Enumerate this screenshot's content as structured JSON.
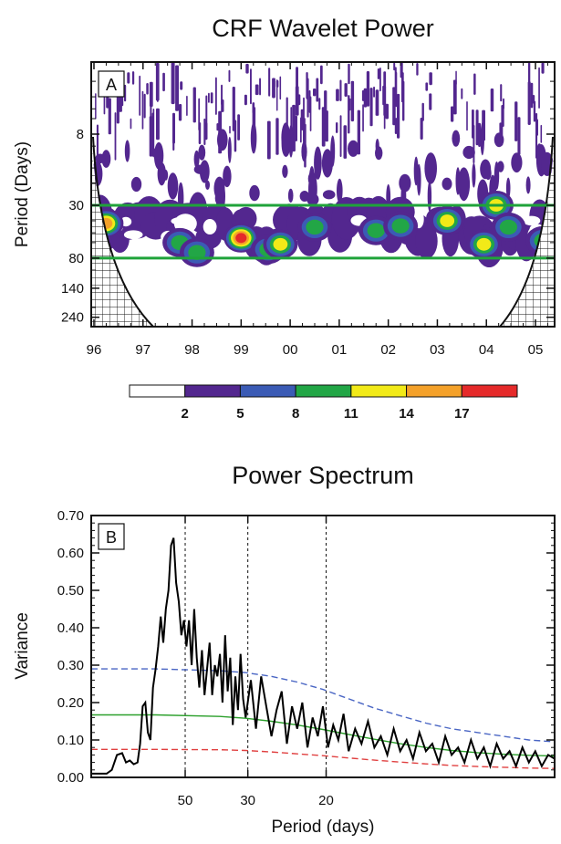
{
  "chart_data": [
    {
      "type": "heatmap",
      "title": "CRF Wavelet Power",
      "panel_label": "A",
      "ylabel": "Period (Days)",
      "x_tick_labels": [
        "96",
        "97",
        "98",
        "99",
        "00",
        "01",
        "02",
        "03",
        "04",
        "05"
      ],
      "y_tick_labels": [
        "8",
        "30",
        "80",
        "140",
        "240"
      ],
      "y_scale": "log",
      "reference_lines_days": [
        30,
        80
      ],
      "reference_line_color": "#1fa33a",
      "colorbar": {
        "labels": [
          "2",
          "5",
          "8",
          "11",
          "14",
          "17"
        ],
        "colors": [
          "#ffffff",
          "#53278f",
          "#3b5bb5",
          "#22a646",
          "#f2ea18",
          "#f4a12a",
          "#e52a2a"
        ]
      },
      "power_blobs": [
        {
          "year": 96.05,
          "period": 50,
          "level": 4
        },
        {
          "year": 96.25,
          "period": 42,
          "level": 5
        },
        {
          "year": 97.75,
          "period": 60,
          "level": 3
        },
        {
          "year": 98.1,
          "period": 72,
          "level": 3
        },
        {
          "year": 99.0,
          "period": 55,
          "level": 6
        },
        {
          "year": 99.55,
          "period": 68,
          "level": 3
        },
        {
          "year": 99.8,
          "period": 62,
          "level": 4
        },
        {
          "year": 100.5,
          "period": 45,
          "level": 3
        },
        {
          "year": 101.75,
          "period": 48,
          "level": 3
        },
        {
          "year": 102.25,
          "period": 44,
          "level": 3
        },
        {
          "year": 103.2,
          "period": 40,
          "level": 4
        },
        {
          "year": 103.95,
          "period": 62,
          "level": 4
        },
        {
          "year": 104.2,
          "period": 30,
          "level": 4
        },
        {
          "year": 104.45,
          "period": 45,
          "level": 3
        },
        {
          "year": 105.15,
          "period": 58,
          "level": 3
        },
        {
          "year": 105.45,
          "period": 50,
          "level": 3
        }
      ]
    },
    {
      "type": "line",
      "title": "Power Spectrum",
      "panel_label": "B",
      "xlabel": "Period (days)",
      "ylabel": "Variance",
      "ylim": [
        0,
        0.7
      ],
      "y_tick_labels": [
        "0.00",
        "0.10",
        "0.20",
        "0.30",
        "0.40",
        "0.50",
        "0.60",
        "0.70"
      ],
      "x_tick_labels": [
        "50",
        "30",
        "20"
      ],
      "x_tick_periods": [
        50,
        30,
        20
      ],
      "x_axis": "frequency (cycles per 3650 days)",
      "xlim": [
        0,
        360
      ],
      "series": [
        {
          "color": "#000000",
          "style": "solid",
          "x": [
            0,
            8,
            12,
            16,
            20,
            24,
            27,
            30,
            33,
            36,
            38,
            40,
            42,
            44,
            46,
            48,
            50,
            52,
            54,
            56,
            58,
            60,
            62,
            64,
            66,
            68,
            70,
            72,
            74,
            76,
            78,
            80,
            82,
            84,
            86,
            88,
            90,
            92,
            94,
            96,
            98,
            100,
            102,
            104,
            106,
            108,
            110,
            112,
            114,
            116,
            118,
            120,
            124,
            128,
            132,
            136,
            140,
            144,
            148,
            152,
            156,
            160,
            164,
            168,
            172,
            176,
            180,
            184,
            188,
            192,
            196,
            200,
            205,
            210,
            215,
            220,
            225,
            230,
            235,
            240,
            245,
            250,
            255,
            260,
            265,
            270,
            275,
            280,
            285,
            290,
            295,
            300,
            305,
            310,
            315,
            320,
            325,
            330,
            335,
            340,
            345,
            350,
            355,
            360
          ],
          "values": [
            0.01,
            0.01,
            0.01,
            0.02,
            0.06,
            0.065,
            0.04,
            0.045,
            0.035,
            0.04,
            0.09,
            0.19,
            0.2,
            0.12,
            0.1,
            0.24,
            0.29,
            0.35,
            0.43,
            0.36,
            0.45,
            0.5,
            0.62,
            0.64,
            0.52,
            0.47,
            0.38,
            0.42,
            0.35,
            0.42,
            0.3,
            0.45,
            0.32,
            0.24,
            0.34,
            0.22,
            0.29,
            0.36,
            0.22,
            0.3,
            0.27,
            0.33,
            0.2,
            0.38,
            0.23,
            0.32,
            0.14,
            0.27,
            0.18,
            0.33,
            0.21,
            0.16,
            0.26,
            0.13,
            0.27,
            0.19,
            0.11,
            0.18,
            0.23,
            0.09,
            0.19,
            0.13,
            0.2,
            0.08,
            0.16,
            0.11,
            0.19,
            0.08,
            0.14,
            0.1,
            0.17,
            0.07,
            0.13,
            0.09,
            0.15,
            0.08,
            0.11,
            0.06,
            0.13,
            0.07,
            0.1,
            0.05,
            0.12,
            0.07,
            0.09,
            0.04,
            0.11,
            0.06,
            0.08,
            0.04,
            0.1,
            0.05,
            0.08,
            0.03,
            0.09,
            0.05,
            0.07,
            0.03,
            0.08,
            0.04,
            0.07,
            0.03,
            0.06,
            0.05
          ]
        },
        {
          "color": "#4a66c4",
          "style": "dashed",
          "x": [
            0,
            50,
            100,
            120,
            140,
            160,
            180,
            200,
            220,
            240,
            260,
            280,
            300,
            320,
            340,
            360
          ],
          "values": [
            0.29,
            0.29,
            0.285,
            0.28,
            0.27,
            0.255,
            0.235,
            0.21,
            0.185,
            0.165,
            0.145,
            0.13,
            0.12,
            0.11,
            0.1,
            0.095
          ]
        },
        {
          "color": "#2ca02c",
          "style": "solid",
          "x": [
            0,
            50,
            100,
            120,
            140,
            160,
            180,
            200,
            220,
            240,
            260,
            280,
            300,
            320,
            340,
            360
          ],
          "values": [
            0.167,
            0.167,
            0.163,
            0.158,
            0.15,
            0.14,
            0.128,
            0.115,
            0.102,
            0.09,
            0.08,
            0.072,
            0.066,
            0.062,
            0.059,
            0.057
          ]
        },
        {
          "color": "#e04040",
          "style": "dashed",
          "x": [
            0,
            50,
            100,
            120,
            140,
            160,
            180,
            200,
            220,
            240,
            260,
            280,
            300,
            320,
            340,
            360
          ],
          "values": [
            0.075,
            0.075,
            0.074,
            0.072,
            0.068,
            0.063,
            0.058,
            0.052,
            0.046,
            0.041,
            0.036,
            0.032,
            0.029,
            0.027,
            0.025,
            0.024
          ]
        }
      ]
    }
  ]
}
